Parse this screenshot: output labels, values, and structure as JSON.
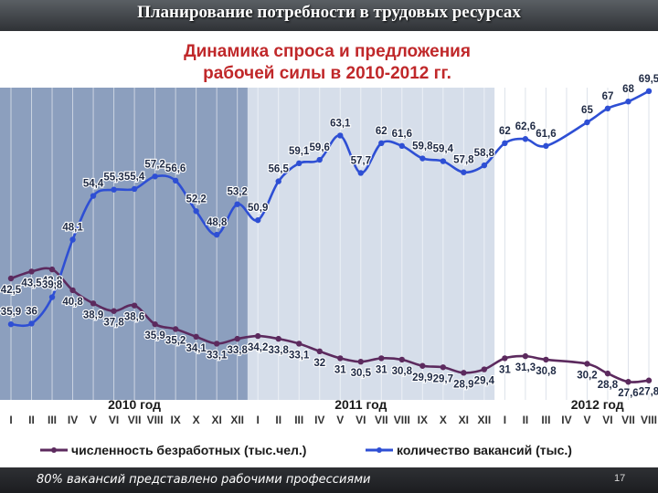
{
  "slide": {
    "title": "Планирование потребности в трудовых ресурсах",
    "footnote": "80% вакансий представлено рабочими профессиями",
    "page_number": "17"
  },
  "colors": {
    "unemployed": "#5c2a5e",
    "vacancies": "#2e4fd4",
    "panel_2010": "#8c9fbe",
    "panel_2011": "#d6deea",
    "title": "#c0282a"
  },
  "chart_data": {
    "type": "line",
    "title": "Динамика спроса и предложения рабочей силы в 2010-2012 гг.",
    "title_lines": [
      "Динамика спроса и предложения",
      "рабочей силы в 2010-2012 гг."
    ],
    "xlabel": "",
    "ylabel": "",
    "year_groups": [
      "2010 год",
      "2011 год",
      "2012 год"
    ],
    "categories": [
      "I",
      "II",
      "III",
      "IV",
      "V",
      "VI",
      "VII",
      "VIII",
      "IX",
      "X",
      "XI",
      "XII",
      "I",
      "II",
      "III",
      "IV",
      "V",
      "VI",
      "VII",
      "VIII",
      "IX",
      "X",
      "XI",
      "XII",
      "I",
      "II",
      "III",
      "IV",
      "V",
      "VI",
      "VII",
      "VIII"
    ],
    "ylim": [
      25,
      70
    ],
    "grid": true,
    "legend": "bottom",
    "series": [
      {
        "name": "численность безработных (тыс.чел.)",
        "values": [
          42.5,
          43.5,
          43.8,
          40.8,
          38.9,
          37.8,
          38.6,
          35.9,
          35.2,
          34.1,
          33.1,
          33.8,
          34.2,
          33.8,
          33.1,
          32,
          31,
          30.5,
          31,
          30.8,
          29.9,
          29.7,
          28.9,
          29.4,
          31,
          31.3,
          30.8,
          null,
          30.2,
          28.8,
          27.6,
          27.8
        ],
        "labels": [
          "42,5",
          "43,5",
          "43,8",
          "40,8",
          "38,9",
          "37,8",
          "38,6",
          "35,9",
          "35,2",
          "34,1",
          "33,1",
          "33,8",
          "34,2",
          "33,8",
          "33,1",
          "32",
          "31",
          "30,5",
          "31",
          "30,8",
          "29,9",
          "29,7",
          "28,9",
          "29,4",
          "31",
          "31,3",
          "30,8",
          "",
          "30,2",
          "28,8",
          "27,6",
          "27,8"
        ]
      },
      {
        "name": "количество вакансий (тыс.)",
        "values": [
          35.9,
          36,
          39.8,
          48.1,
          54.4,
          55.3,
          55.4,
          57.2,
          56.6,
          52.2,
          48.8,
          53.2,
          50.9,
          56.5,
          59.1,
          59.6,
          63.1,
          57.7,
          62,
          61.6,
          59.8,
          59.4,
          57.8,
          58.8,
          62,
          62.6,
          61.6,
          null,
          65,
          67,
          68,
          69.5
        ],
        "labels": [
          "35,9",
          "36",
          "39,8",
          "48,1",
          "54,4",
          "55,3",
          "55,4",
          "57,2",
          "56,6",
          "52,2",
          "48,8",
          "53,2",
          "50,9",
          "56,5",
          "59,1",
          "59,6",
          "63,1",
          "57,7",
          "62",
          "61,6",
          "59,8",
          "59,4",
          "57,8",
          "58,8",
          "62",
          "62,6",
          "61,6",
          "",
          "65",
          "67",
          "68",
          "69,5"
        ]
      }
    ]
  }
}
